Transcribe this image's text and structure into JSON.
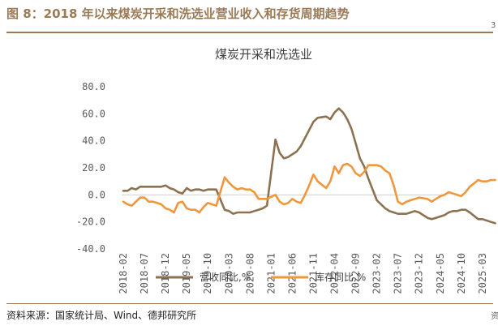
{
  "figure_title": "图 8：2018 年以来煤炭开采和洗选业营业收入和存货周期趋势",
  "source": "资料来源：国家统计局、Wind、德邦研究所",
  "edge_marks": {
    "top": "3",
    "bottom": "资"
  },
  "colors": {
    "revenue": "#8c7250",
    "inventory": "#f0973e",
    "accent": "#9b7a55"
  },
  "chart_data": {
    "type": "line",
    "title": "煤炭开采和洗选业",
    "ylim": [
      -40,
      80
    ],
    "yticks": [
      80,
      60,
      40,
      20,
      0,
      -20,
      -40
    ],
    "ytick_labels": [
      "80.0",
      "60.0",
      "40.0",
      "20.0",
      "0.0",
      "-20.0",
      "-40.0"
    ],
    "xtick_labels": [
      "2018-02",
      "2018-07",
      "2018-12",
      "2019-05",
      "2019-10",
      "2020-03",
      "2020-08",
      "2021-01",
      "2021-06",
      "2021-11",
      "2022-04",
      "2022-09",
      "2023-02",
      "2023-07",
      "2023-12",
      "2024-05",
      "2024-10",
      "2025-03"
    ],
    "x_start": "2018-02",
    "legend_position": "bottom",
    "series": [
      {
        "name": "营收同比,%",
        "color": "#8c7250",
        "points": [
          [
            "2018-02",
            3
          ],
          [
            "2018-03",
            3
          ],
          [
            "2018-04",
            5
          ],
          [
            "2018-05",
            4
          ],
          [
            "2018-06",
            6
          ],
          [
            "2018-07",
            6
          ],
          [
            "2018-08",
            6
          ],
          [
            "2018-09",
            6
          ],
          [
            "2018-10",
            6
          ],
          [
            "2018-11",
            6
          ],
          [
            "2018-12",
            7
          ],
          [
            "2019-01",
            5
          ],
          [
            "2019-02",
            4
          ],
          [
            "2019-03",
            2
          ],
          [
            "2019-04",
            1
          ],
          [
            "2019-05",
            5
          ],
          [
            "2019-06",
            3
          ],
          [
            "2019-07",
            4
          ],
          [
            "2019-08",
            4
          ],
          [
            "2019-09",
            3
          ],
          [
            "2019-10",
            4
          ],
          [
            "2019-11",
            4
          ],
          [
            "2019-12",
            4
          ],
          [
            "2020-02",
            -11
          ],
          [
            "2020-03",
            -12
          ],
          [
            "2020-04",
            -14
          ],
          [
            "2020-05",
            -13
          ],
          [
            "2020-06",
            -13
          ],
          [
            "2020-07",
            -13
          ],
          [
            "2020-08",
            -13
          ],
          [
            "2020-09",
            -12
          ],
          [
            "2020-10",
            -11
          ],
          [
            "2020-11",
            -10
          ],
          [
            "2020-12",
            -8
          ],
          [
            "2021-02",
            41
          ],
          [
            "2021-03",
            31
          ],
          [
            "2021-04",
            27
          ],
          [
            "2021-05",
            28
          ],
          [
            "2021-06",
            30
          ],
          [
            "2021-07",
            32
          ],
          [
            "2021-08",
            36
          ],
          [
            "2021-09",
            42
          ],
          [
            "2021-10",
            48
          ],
          [
            "2021-11",
            54
          ],
          [
            "2021-12",
            57
          ],
          [
            "2022-02",
            58
          ],
          [
            "2022-03",
            56
          ],
          [
            "2022-04",
            61
          ],
          [
            "2022-05",
            64
          ],
          [
            "2022-06",
            61
          ],
          [
            "2022-07",
            56
          ],
          [
            "2022-08",
            49
          ],
          [
            "2022-09",
            38
          ],
          [
            "2022-10",
            27
          ],
          [
            "2022-11",
            21
          ],
          [
            "2022-12",
            12
          ],
          [
            "2023-02",
            -4
          ],
          [
            "2023-03",
            -7
          ],
          [
            "2023-04",
            -10
          ],
          [
            "2023-05",
            -12
          ],
          [
            "2023-06",
            -13
          ],
          [
            "2023-07",
            -14
          ],
          [
            "2023-08",
            -14
          ],
          [
            "2023-09",
            -14
          ],
          [
            "2023-10",
            -13
          ],
          [
            "2023-11",
            -12
          ],
          [
            "2023-12",
            -13
          ],
          [
            "2024-02",
            -17
          ],
          [
            "2024-03",
            -18
          ],
          [
            "2024-04",
            -17
          ],
          [
            "2024-05",
            -16
          ],
          [
            "2024-06",
            -15
          ],
          [
            "2024-07",
            -13
          ],
          [
            "2024-08",
            -12
          ],
          [
            "2024-09",
            -12
          ],
          [
            "2024-10",
            -11
          ],
          [
            "2024-11",
            -11
          ],
          [
            "2024-12",
            -13
          ],
          [
            "2025-02",
            -18
          ],
          [
            "2025-03",
            -18
          ],
          [
            "2025-04",
            -19
          ],
          [
            "2025-05",
            -20
          ],
          [
            "2025-06",
            -21
          ]
        ]
      },
      {
        "name": "库存同比,%",
        "color": "#f0973e",
        "points": [
          [
            "2018-02",
            -5
          ],
          [
            "2018-03",
            -7
          ],
          [
            "2018-04",
            -8
          ],
          [
            "2018-05",
            -5
          ],
          [
            "2018-06",
            -2
          ],
          [
            "2018-07",
            -2
          ],
          [
            "2018-08",
            -5
          ],
          [
            "2018-09",
            -5
          ],
          [
            "2018-10",
            -6
          ],
          [
            "2018-11",
            -7
          ],
          [
            "2018-12",
            -10
          ],
          [
            "2019-01",
            -11
          ],
          [
            "2019-02",
            -13
          ],
          [
            "2019-03",
            -6
          ],
          [
            "2019-04",
            -5
          ],
          [
            "2019-05",
            -10
          ],
          [
            "2019-06",
            -11
          ],
          [
            "2019-07",
            -11
          ],
          [
            "2019-08",
            -13
          ],
          [
            "2019-09",
            -9
          ],
          [
            "2019-10",
            -6
          ],
          [
            "2019-11",
            -7
          ],
          [
            "2019-12",
            -8
          ],
          [
            "2020-02",
            13
          ],
          [
            "2020-03",
            9
          ],
          [
            "2020-04",
            6
          ],
          [
            "2020-05",
            4
          ],
          [
            "2020-06",
            5
          ],
          [
            "2020-07",
            4
          ],
          [
            "2020-08",
            4
          ],
          [
            "2020-09",
            2
          ],
          [
            "2020-10",
            -3
          ],
          [
            "2020-11",
            -3
          ],
          [
            "2020-12",
            -3
          ],
          [
            "2021-02",
            0
          ],
          [
            "2021-03",
            -5
          ],
          [
            "2021-04",
            -7
          ],
          [
            "2021-05",
            -6
          ],
          [
            "2021-06",
            -3
          ],
          [
            "2021-07",
            -5
          ],
          [
            "2021-08",
            -6
          ],
          [
            "2021-09",
            0
          ],
          [
            "2021-10",
            7
          ],
          [
            "2021-11",
            15
          ],
          [
            "2021-12",
            10
          ],
          [
            "2022-02",
            5
          ],
          [
            "2022-03",
            10
          ],
          [
            "2022-04",
            21
          ],
          [
            "2022-05",
            16
          ],
          [
            "2022-06",
            22
          ],
          [
            "2022-07",
            23
          ],
          [
            "2022-08",
            21
          ],
          [
            "2022-09",
            16
          ],
          [
            "2022-10",
            14
          ],
          [
            "2022-11",
            17
          ],
          [
            "2022-12",
            22
          ],
          [
            "2023-02",
            22
          ],
          [
            "2023-03",
            21
          ],
          [
            "2023-04",
            18
          ],
          [
            "2023-05",
            16
          ],
          [
            "2023-06",
            7
          ],
          [
            "2023-07",
            -5
          ],
          [
            "2023-08",
            -7
          ],
          [
            "2023-09",
            -5
          ],
          [
            "2023-10",
            -4
          ],
          [
            "2023-11",
            -3
          ],
          [
            "2023-12",
            -2
          ],
          [
            "2024-02",
            -3
          ],
          [
            "2024-03",
            -5
          ],
          [
            "2024-04",
            -3
          ],
          [
            "2024-05",
            -1
          ],
          [
            "2024-06",
            0
          ],
          [
            "2024-07",
            2
          ],
          [
            "2024-08",
            1
          ],
          [
            "2024-09",
            0
          ],
          [
            "2024-10",
            -1
          ],
          [
            "2024-11",
            2
          ],
          [
            "2024-12",
            6
          ],
          [
            "2025-02",
            11
          ],
          [
            "2025-03",
            10
          ],
          [
            "2025-04",
            10
          ],
          [
            "2025-05",
            11
          ],
          [
            "2025-06",
            11
          ]
        ]
      }
    ]
  }
}
